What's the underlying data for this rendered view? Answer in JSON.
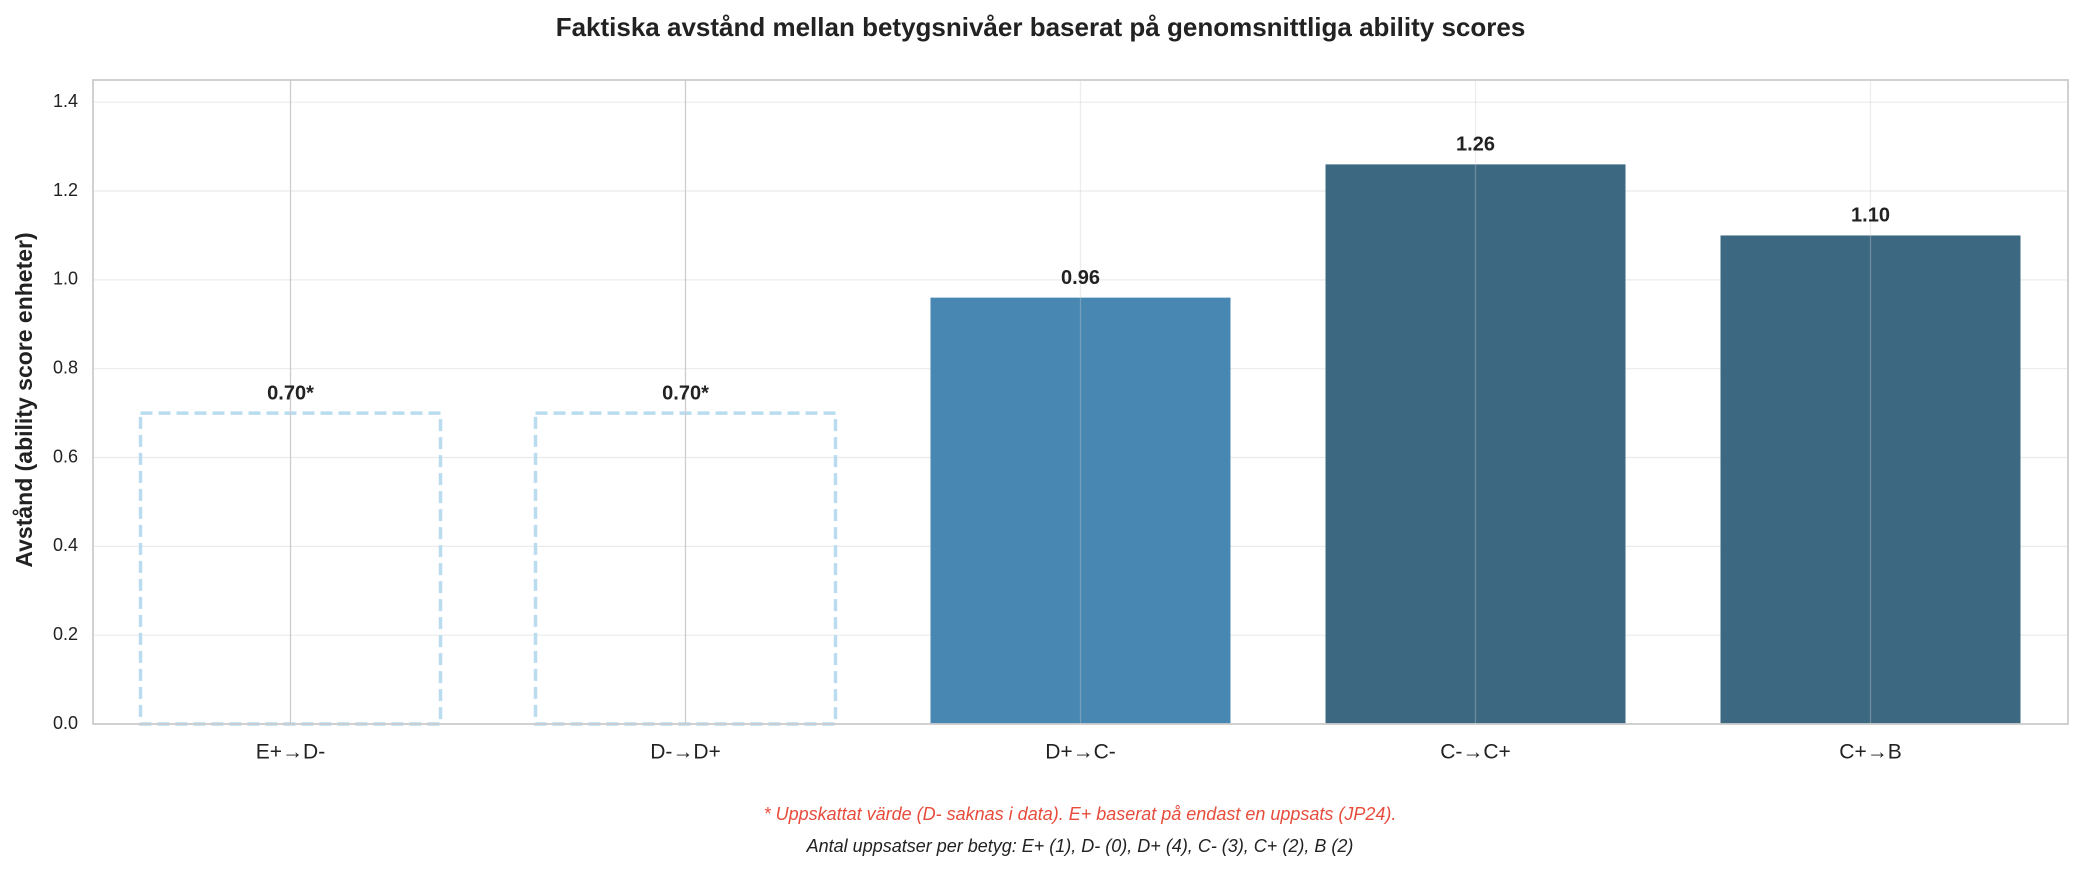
{
  "colors": {
    "background": "#ffffff",
    "plot_border": "#cccccc",
    "grid": "#ebebeb",
    "vertical_grid": "#cccccc",
    "estimated_edge": "#b9dcef",
    "bar_mid": "#4787b1",
    "bar_dark": "#3d6882",
    "note_red": "#e74c3c",
    "text": "#222222"
  },
  "chart_data": {
    "type": "bar",
    "title": "Faktiska avstånd mellan betygsnivåer baserat på genomsnittliga ability scores",
    "ylabel": "Avstånd (ability score enheter)",
    "xlabel": "",
    "ylim": [
      0,
      1.45
    ],
    "yticks": [
      "0.0",
      "0.2",
      "0.4",
      "0.6",
      "0.8",
      "1.0",
      "1.2",
      "1.4"
    ],
    "grid": "y",
    "categories": [
      "E+→D-",
      "D-→D+",
      "D+→C-",
      "C-→C+",
      "C+→B"
    ],
    "values": [
      0.7,
      0.7,
      0.96,
      1.26,
      1.1
    ],
    "labels": [
      "0.70*",
      "0.70*",
      "0.96",
      "1.26",
      "1.10"
    ],
    "estimated": [
      true,
      true,
      false,
      false,
      false
    ],
    "bar_colors": [
      "#b9dcef",
      "#b9dcef",
      "#4787b1",
      "#3d6882",
      "#3d6882"
    ],
    "bar_styles": [
      "dashed-outline",
      "dashed-outline",
      "solid",
      "solid",
      "solid"
    ]
  },
  "notes": {
    "primary": "* Uppskattat värde (D- saknas i data). E+ baserat på endast en uppsats (JP24).",
    "secondary": "Antal uppsatser per betyg: E+ (1), D- (0), D+ (4), C- (3), C+ (2), B (2)"
  }
}
